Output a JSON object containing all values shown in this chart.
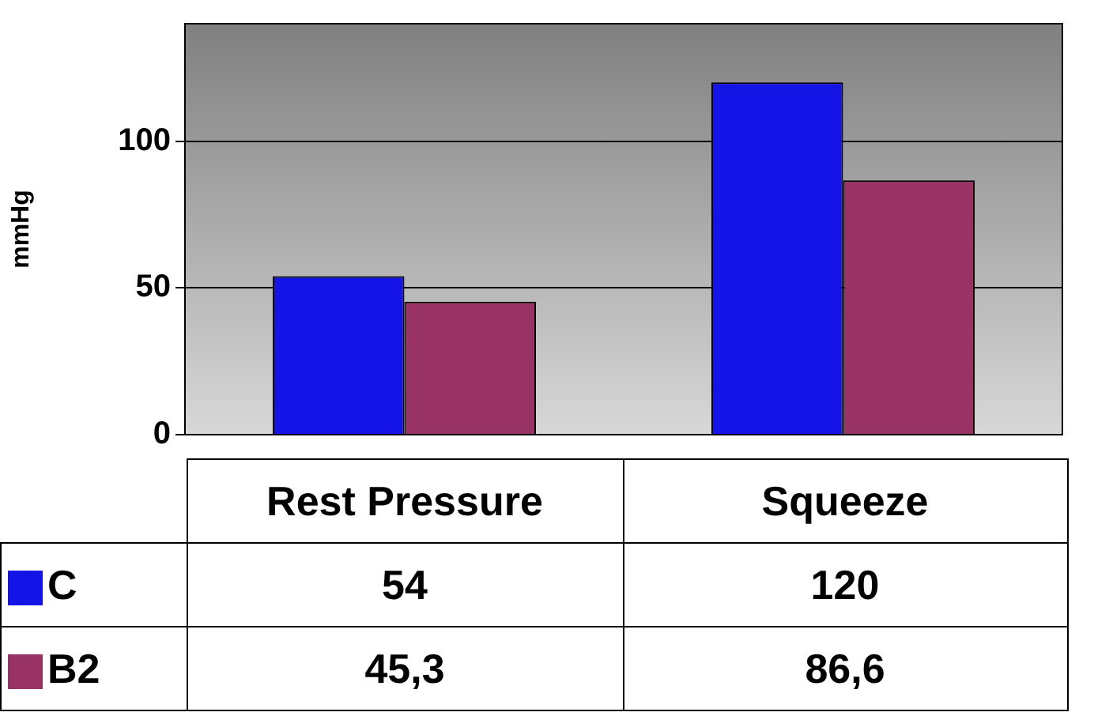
{
  "chart_data": {
    "type": "bar",
    "ylabel": "mmHg",
    "categories": [
      "Rest Pressure",
      "Squeeze"
    ],
    "series": [
      {
        "name": "C",
        "color": "#1414e6",
        "values": [
          54,
          120
        ],
        "value_labels": [
          "54",
          "120"
        ]
      },
      {
        "name": "B2",
        "color": "#993366",
        "values": [
          45.3,
          86.6
        ],
        "value_labels": [
          "45,3",
          "86,6"
        ]
      }
    ],
    "ylim": [
      0,
      140
    ],
    "yticks": [
      0,
      50,
      100
    ],
    "grid": "y",
    "legend": "bottom"
  }
}
